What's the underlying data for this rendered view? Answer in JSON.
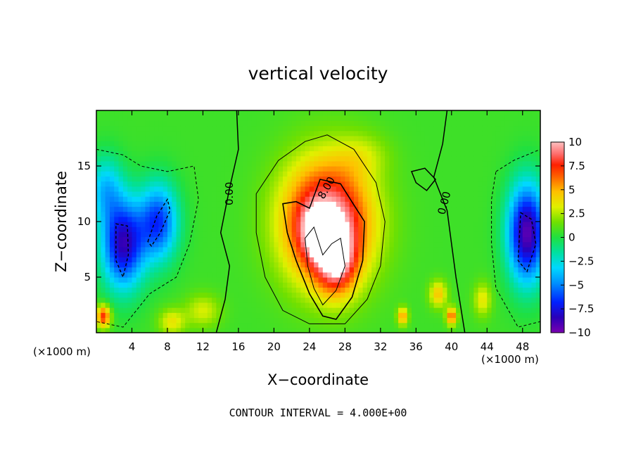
{
  "chart_data": {
    "type": "heatmap",
    "title": "vertical velocity",
    "xlabel": "X−coordinate",
    "ylabel": "Z−coordinate",
    "x_unit": "(×1000 m)",
    "x_unit_right": "(×1000 m)",
    "xlim": [
      0,
      50
    ],
    "ylim": [
      0,
      20
    ],
    "x_ticks": [
      4,
      8,
      12,
      16,
      20,
      24,
      28,
      32,
      36,
      40,
      44,
      48
    ],
    "y_ticks": [
      5,
      10,
      15
    ],
    "colorbar": {
      "min": -10,
      "max": 10,
      "ticks": [
        10,
        7.5,
        5,
        2.5,
        0,
        -2.5,
        -5,
        -7.5,
        -10
      ],
      "tick_labels": [
        "10",
        "7.5",
        "5",
        "2.5",
        "0",
        "−2.5",
        "−5",
        "−7.5",
        "−10"
      ]
    },
    "contour_labels": [
      "0.00",
      "8.00",
      "0.00"
    ],
    "footer": "CONTOUR INTERVAL = 4.000E+00",
    "features": [
      {
        "kind": "updraft",
        "x": 26,
        "z": 8,
        "peak": 14
      },
      {
        "kind": "downdraft",
        "x": 3,
        "z": 7.5,
        "peak": -9
      },
      {
        "kind": "downdraft",
        "x": 6.5,
        "z": 10,
        "peak": -7
      },
      {
        "kind": "downdraft",
        "x": 48.5,
        "z": 9,
        "peak": -9
      }
    ]
  }
}
